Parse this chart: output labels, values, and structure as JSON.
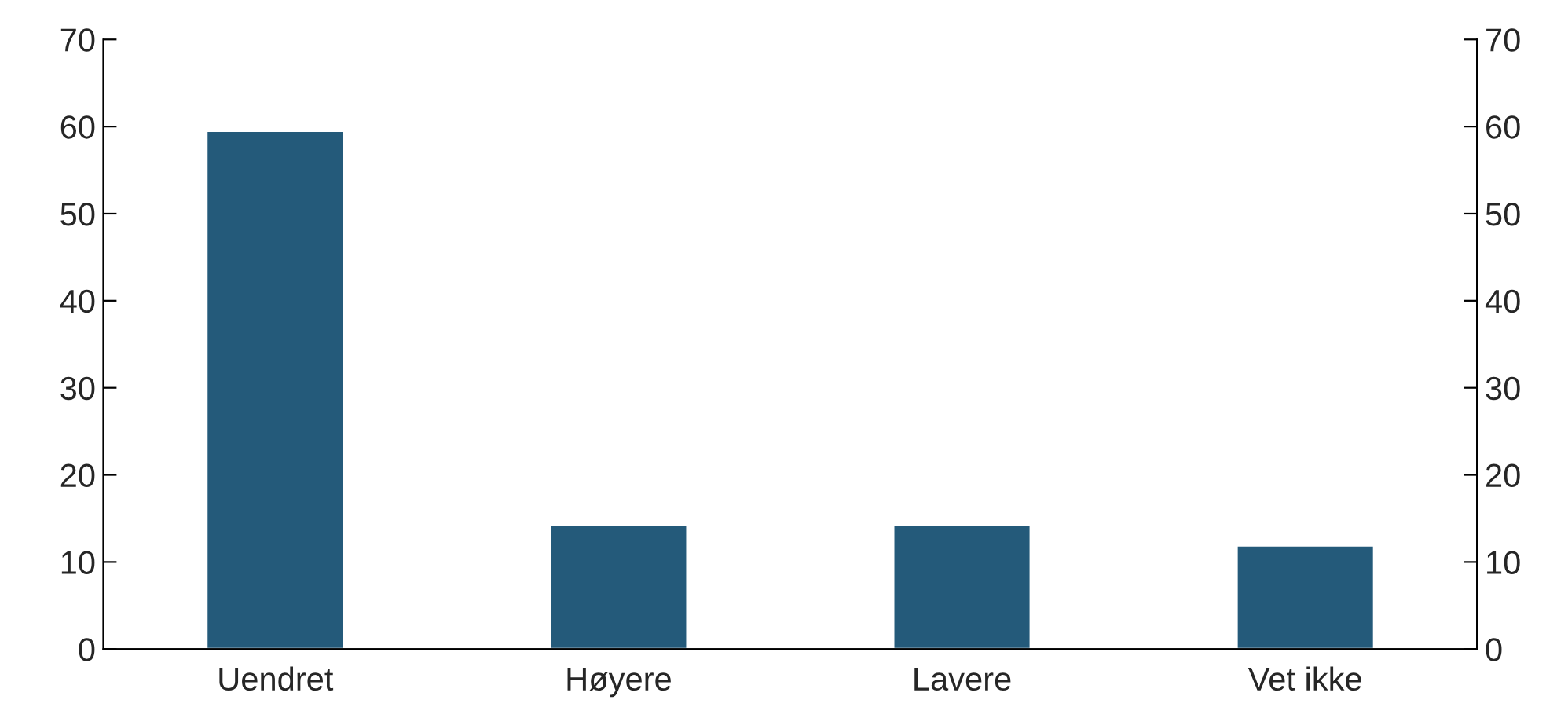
{
  "chart_data": {
    "type": "bar",
    "categories": [
      "Uendret",
      "Høyere",
      "Lavere",
      "Vet ikke"
    ],
    "values": [
      59.5,
      14.3,
      14.3,
      11.9
    ],
    "color": "#245a7a",
    "ylim": [
      0,
      70
    ],
    "yticks": [
      0,
      10,
      20,
      30,
      40,
      50,
      60,
      70
    ],
    "y2lim": [
      0,
      70
    ],
    "y2ticks": [
      0,
      10,
      20,
      30,
      40,
      50,
      60,
      70
    ],
    "grid": false,
    "legend": false
  }
}
